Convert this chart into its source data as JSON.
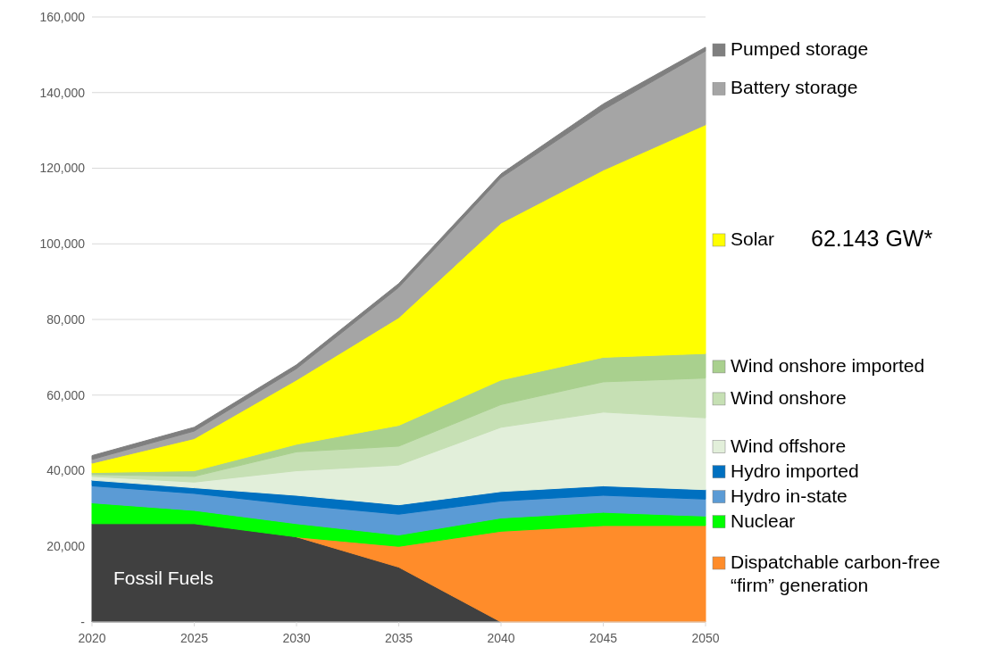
{
  "chart_data": {
    "type": "area",
    "stacked": true,
    "x": [
      2020,
      2025,
      2030,
      2035,
      2040,
      2045,
      2050
    ],
    "xlim": [
      2020,
      2050
    ],
    "xticks": [
      2020,
      2025,
      2030,
      2035,
      2040,
      2045,
      2050
    ],
    "ylim": [
      0,
      160000
    ],
    "yticks": [
      {
        "value": 0,
        "label": "-"
      },
      {
        "value": 20000,
        "label": "20,000"
      },
      {
        "value": 40000,
        "label": "40,000"
      },
      {
        "value": 60000,
        "label": "60,000"
      },
      {
        "value": 80000,
        "label": "80,000"
      },
      {
        "value": 100000,
        "label": "100,000"
      },
      {
        "value": 120000,
        "label": "120,000"
      },
      {
        "value": 140000,
        "label": "140,000"
      },
      {
        "value": 160000,
        "label": "160,000"
      }
    ],
    "grid": "y",
    "legend": "right",
    "series": [
      {
        "name": "Fossil Fuels",
        "color": "#404040",
        "values": [
          26000,
          26000,
          22500,
          14500,
          0,
          null,
          null
        ]
      },
      {
        "name": "Dispatchable carbon-free “firm” generation",
        "color": "#ff8c2a",
        "values": [
          null,
          null,
          0,
          5500,
          24000,
          25500,
          25500
        ]
      },
      {
        "name": "Nuclear",
        "color": "#00ff00",
        "values": [
          5500,
          3500,
          3500,
          3000,
          3500,
          3500,
          2500
        ]
      },
      {
        "name": "Hydro in-state",
        "color": "#5b9bd5",
        "values": [
          4500,
          4500,
          5000,
          5500,
          4500,
          4500,
          4500
        ]
      },
      {
        "name": "Hydro imported",
        "color": "#0070c0",
        "values": [
          1500,
          1500,
          2500,
          2500,
          2500,
          2500,
          2500
        ]
      },
      {
        "name": "Wind offshore",
        "color": "#e2efda",
        "values": [
          1000,
          1500,
          6500,
          10500,
          17000,
          19500,
          19000
        ]
      },
      {
        "name": "Wind onshore",
        "color": "#c6e0b4",
        "values": [
          500,
          1500,
          5000,
          5000,
          6000,
          8000,
          10500
        ]
      },
      {
        "name": "Wind onshore imported",
        "color": "#a9d08e",
        "values": [
          500,
          1500,
          2000,
          5500,
          6500,
          6500,
          6500
        ]
      },
      {
        "name": "Solar",
        "color": "#ffff00",
        "values": [
          2500,
          8500,
          17000,
          28500,
          41500,
          49500,
          60500
        ]
      },
      {
        "name": "Battery storage",
        "color": "#a5a5a5",
        "values": [
          1000,
          2000,
          3000,
          8000,
          12000,
          16000,
          19500
        ]
      },
      {
        "name": "Pumped storage",
        "color": "#7f7f7f",
        "values": [
          1000,
          1000,
          1000,
          1000,
          1000,
          1500,
          1000
        ]
      }
    ],
    "annotations": [
      "62.143 GW*"
    ]
  }
}
